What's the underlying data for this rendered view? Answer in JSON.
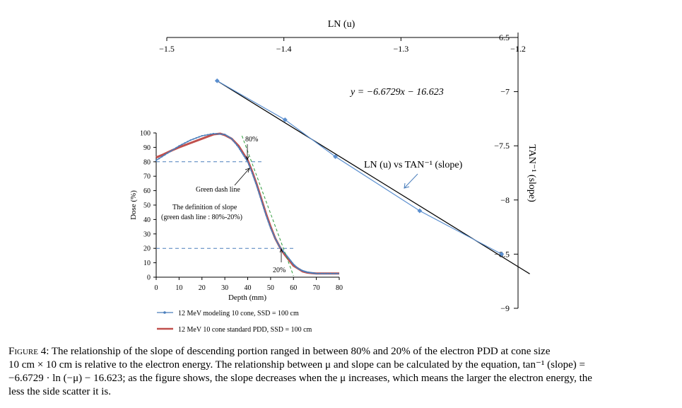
{
  "chart_data": [
    {
      "type": "line",
      "title": "",
      "xlabel": "LN (u)",
      "ylabel": "TAN⁻¹ (slope)",
      "xlim": [
        -1.5,
        -1.2
      ],
      "ylim": [
        -9,
        -6.5
      ],
      "x_ticks": [
        -1.5,
        -1.4,
        -1.3,
        -1.2
      ],
      "x_tick_labels": [
        "−1.5",
        "−1.4",
        "−1.3",
        "−1.2"
      ],
      "y_ticks": [
        -9,
        -8.5,
        -8,
        -7.5,
        -7,
        -6.5
      ],
      "y_tick_labels": [
        "−9",
        "−8.5",
        "−8",
        "−7.5",
        "−7",
        "−6.5"
      ],
      "series": [
        {
          "name": "LN (u) vs TAN⁻¹ (slope)",
          "color": "#5b8fcf",
          "points": [
            [
              -1.457,
              -6.9
            ],
            [
              -1.399,
              -7.26
            ],
            [
              -1.356,
              -7.6
            ],
            [
              -1.284,
              -8.1
            ],
            [
              -1.214,
              -8.5
            ]
          ]
        }
      ],
      "trendline": {
        "equation": "y = −6.6729x − 16.623",
        "slope": -6.6729,
        "intercept": -16.623,
        "color": "#000000",
        "x_range": [
          -1.457,
          -1.19
        ]
      },
      "annotations": {
        "series_label": "LN (u) vs TAN⁻¹ (slope)"
      }
    },
    {
      "type": "line",
      "title": "",
      "xlabel": "Depth (mm)",
      "ylabel": "Dose (%)",
      "xlim": [
        0,
        80
      ],
      "ylim": [
        0,
        100
      ],
      "x_ticks": [
        0,
        10,
        20,
        30,
        40,
        50,
        60,
        70,
        80
      ],
      "y_ticks": [
        0,
        10,
        20,
        30,
        40,
        50,
        60,
        70,
        80,
        90,
        100
      ],
      "legend_position": "bottom",
      "series": [
        {
          "name": "12 MeV modeling 10 cone, SSD = 100 cm",
          "color": "#4a7ebb",
          "x": [
            0,
            5,
            10,
            15,
            20,
            25,
            30,
            33,
            36,
            38,
            40,
            42,
            44,
            46,
            48,
            50,
            52,
            54,
            56,
            58,
            60,
            62,
            64,
            66,
            68,
            70,
            75,
            80
          ],
          "y": [
            81,
            86,
            91,
            95,
            98,
            99.5,
            99,
            96,
            90,
            85,
            80,
            72,
            63,
            53,
            43,
            34,
            27,
            21,
            17,
            13,
            9,
            6,
            4.5,
            3.5,
            3,
            2.5,
            2.5,
            2.5
          ]
        },
        {
          "name": "12 MeV 10 cone standard PDD, SSD = 100 cm",
          "color": "#c0504d",
          "x": [
            0,
            3,
            7,
            10,
            15,
            20,
            25,
            28,
            30,
            33,
            36,
            38,
            40,
            42,
            44,
            46,
            48,
            50,
            52,
            54,
            56,
            58,
            60,
            62,
            64,
            66,
            68,
            70,
            75,
            80
          ],
          "y": [
            83,
            85,
            88,
            90,
            93,
            96,
            99,
            99.5,
            98.5,
            96,
            91,
            86,
            81,
            73,
            64,
            54,
            44,
            35,
            27,
            21,
            16,
            12,
            8,
            6,
            4,
            3.2,
            2.8,
            2.6,
            2.6,
            2.6
          ]
        }
      ],
      "reference_lines": {
        "level_80": 80,
        "level_20": 20,
        "green_slope_line": [
          [
            37.5,
            98
          ],
          [
            60,
            1
          ]
        ]
      },
      "annotations": {
        "label_80": "80%",
        "label_20": "20%",
        "green_dash_label": "Green dash line",
        "definition_line1": "The definition of slope",
        "definition_line2": "(green dash line : 80%-20%)"
      }
    }
  ],
  "caption": {
    "label": "Figure 4:",
    "line1": "The relationship of the slope of descending portion ranged in between 80% and 20% of the electron PDD at cone size",
    "line2": "10 cm × 10 cm  is relative to the electron energy. The relationship between μ and slope can be calculated by the equation, tan⁻¹ (slope) =",
    "line3": "−6.6729 · ln (−μ) − 16.623; as the figure shows, the slope decreases when the μ increases, which means the larger the electron energy, the",
    "line4": "less the side scatter it is."
  },
  "colors": {
    "outer_series": "#5b8fcf",
    "trendline": "#000000",
    "modeling": "#4a7ebb",
    "standard": "#c0504d",
    "reference_dash": "#4a7ebb",
    "green_dash": "#2e9a3a"
  }
}
